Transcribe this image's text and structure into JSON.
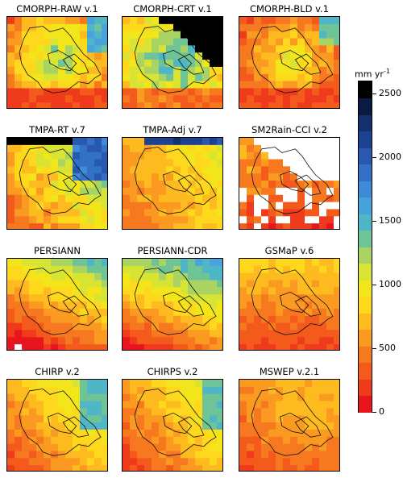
{
  "panels": [
    {
      "title": "CMORPH-RAW v.1",
      "profile": "wet_center_cold"
    },
    {
      "title": "CMORPH-CRT v.1",
      "profile": "crt_black"
    },
    {
      "title": "CMORPH-BLD v.1",
      "profile": "wet_center_warm"
    },
    {
      "title": "TMPA-RT v.7",
      "profile": "tmpa_rt"
    },
    {
      "title": "TMPA-Adj v.7",
      "profile": "tmpa_adj"
    },
    {
      "title": "SM2Rain-CCI v.2",
      "profile": "sm2rain"
    },
    {
      "title": "PERSIANN",
      "profile": "persiann"
    },
    {
      "title": "PERSIANN-CDR",
      "profile": "persiann_cdr"
    },
    {
      "title": "GSMaP v.6",
      "profile": "gsmap"
    },
    {
      "title": "CHIRP v.2",
      "profile": "chirp"
    },
    {
      "title": "CHIRPS v.2",
      "profile": "chirps"
    },
    {
      "title": "MSWEP v.2.1",
      "profile": "mswep"
    }
  ],
  "colorbar": {
    "unit": "mm yr",
    "unit_exponent": "-1",
    "min": 0,
    "max": 2600,
    "ticks": [
      "0",
      "500",
      "1000",
      "1500",
      "2000",
      "2500"
    ],
    "colors": [
      "#e8141e",
      "#ef3a1c",
      "#f45a1c",
      "#f7791f",
      "#fb9a21",
      "#fdbb1f",
      "#fdd81c",
      "#f2e61a",
      "#d8e434",
      "#a9d463",
      "#6fc497",
      "#4fb6c8",
      "#48a3dc",
      "#3d8bd8",
      "#3271c6",
      "#2858b0",
      "#1e4293",
      "#15306f",
      "#0b1a40",
      "#000000"
    ]
  },
  "missing_color": "#ffffff"
}
